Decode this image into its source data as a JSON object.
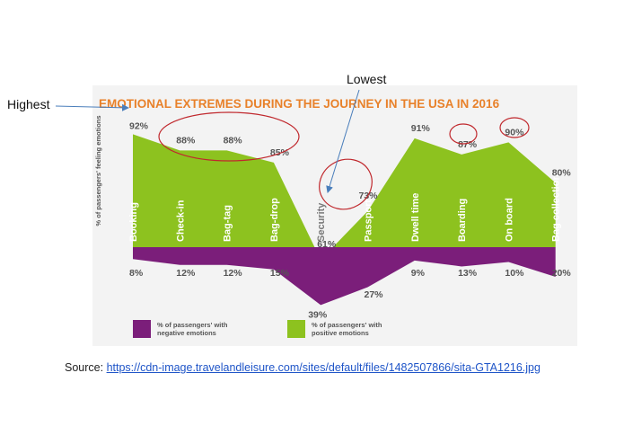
{
  "annotations": {
    "highest": "Highest",
    "lowest": "Lowest"
  },
  "source": {
    "label": "Source:",
    "url": "https://cdn-image.travelandleisure.com/sites/default/files/1482507866/sita-GTA1216.jpg"
  },
  "chart_data": {
    "type": "area",
    "title": "EMOTIONAL EXTREMES DURING THE JOURNEY IN THE USA IN 2016",
    "ylabel": "% of passengers' feeling emotions",
    "categories": [
      "Booking",
      "Check-in",
      "Bag-tag",
      "Bag-drop",
      "Security",
      "Passport",
      "Dwell time",
      "Boarding",
      "On board",
      "Bag collection"
    ],
    "series": [
      {
        "name": "% of passengers' with positive emotions",
        "color": "#8dc21f",
        "values": [
          92,
          88,
          88,
          85,
          61,
          73,
          91,
          87,
          90,
          80
        ],
        "labels": [
          "92%",
          "88%",
          "88%",
          "85%",
          "61%",
          "73%",
          "91%",
          "87%",
          "90%",
          "80%"
        ]
      },
      {
        "name": "% of passengers' with negative emotions",
        "color": "#7b1e7a",
        "values": [
          8,
          12,
          12,
          15,
          39,
          27,
          9,
          13,
          10,
          20
        ],
        "labels": [
          "8%",
          "12%",
          "12%",
          "15%",
          "39%",
          "27%",
          "9%",
          "13%",
          "10%",
          "20%"
        ]
      }
    ],
    "legend": [
      {
        "name": "% of passengers' with negative emotions",
        "color": "#7b1e7a"
      },
      {
        "name": "% of passengers' with positive emotions",
        "color": "#8dc21f"
      }
    ],
    "title_color": "#e8812a",
    "highlight_color": "#c0282d",
    "annotation_arrow_color": "#4a7ebb"
  }
}
